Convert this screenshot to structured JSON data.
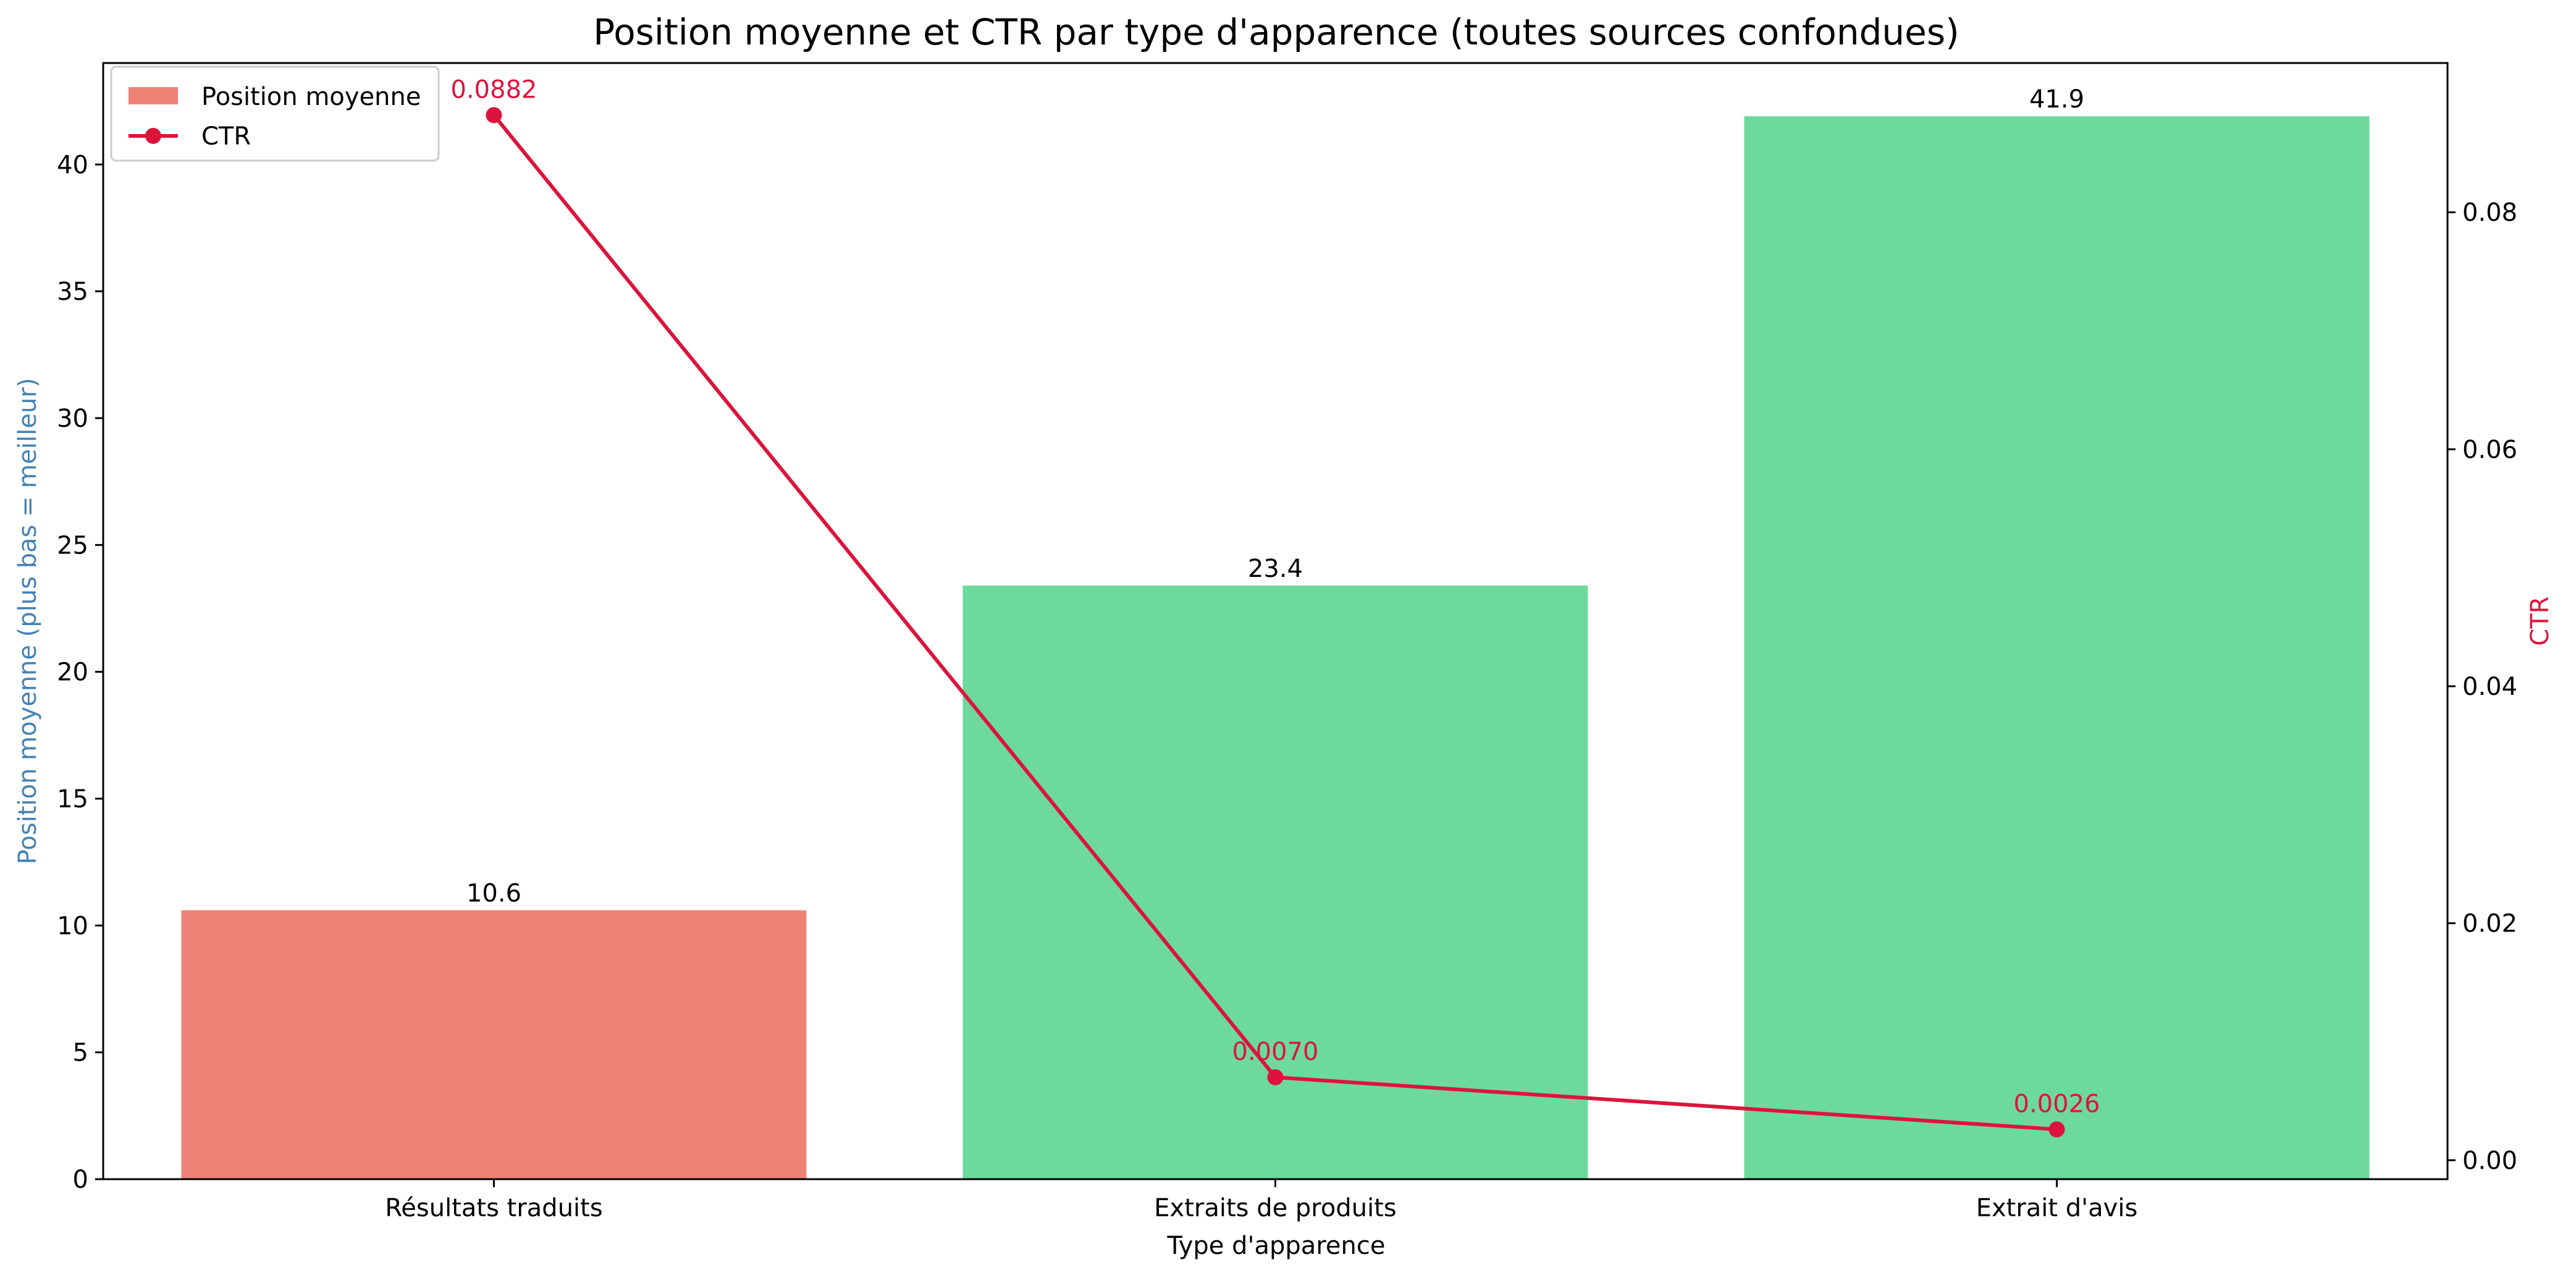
{
  "chart_data": {
    "type": "bar",
    "title": "Position moyenne et CTR par type d'apparence (toutes sources confondues)",
    "xlabel": "Type d'apparence",
    "ylabel": "Position moyenne (plus bas = meilleur)",
    "y2label": "CTR",
    "categories": [
      "Résultats traduits",
      "Extraits de produits",
      "Extrait d'avis"
    ],
    "ylim": [
      0,
      44
    ],
    "y2lim": [
      -0.0016,
      0.0926
    ],
    "yticks": [
      0,
      5,
      10,
      15,
      20,
      25,
      30,
      35,
      40
    ],
    "y2ticks": [
      0.0,
      0.02,
      0.04,
      0.06,
      0.08
    ],
    "y2tick_labels": [
      "0.00",
      "0.02",
      "0.04",
      "0.06",
      "0.08"
    ],
    "grid": false,
    "legend_position": "top-left",
    "series": [
      {
        "name": "Position moyenne",
        "kind": "bar",
        "axis": "left",
        "values": [
          10.6,
          23.4,
          41.9
        ],
        "value_labels": [
          "10.6",
          "23.4",
          "41.9"
        ],
        "colors": [
          "#ee8277",
          "#6dd99b",
          "#6dd99b"
        ]
      },
      {
        "name": "CTR",
        "kind": "line",
        "axis": "right",
        "values": [
          0.0882,
          0.007,
          0.0026
        ],
        "value_labels": [
          "0.0882",
          "0.0070",
          "0.0026"
        ],
        "color": "#dc143c"
      }
    ],
    "ylabel_color": "#4682b4",
    "y2label_color": "#dc143c"
  }
}
